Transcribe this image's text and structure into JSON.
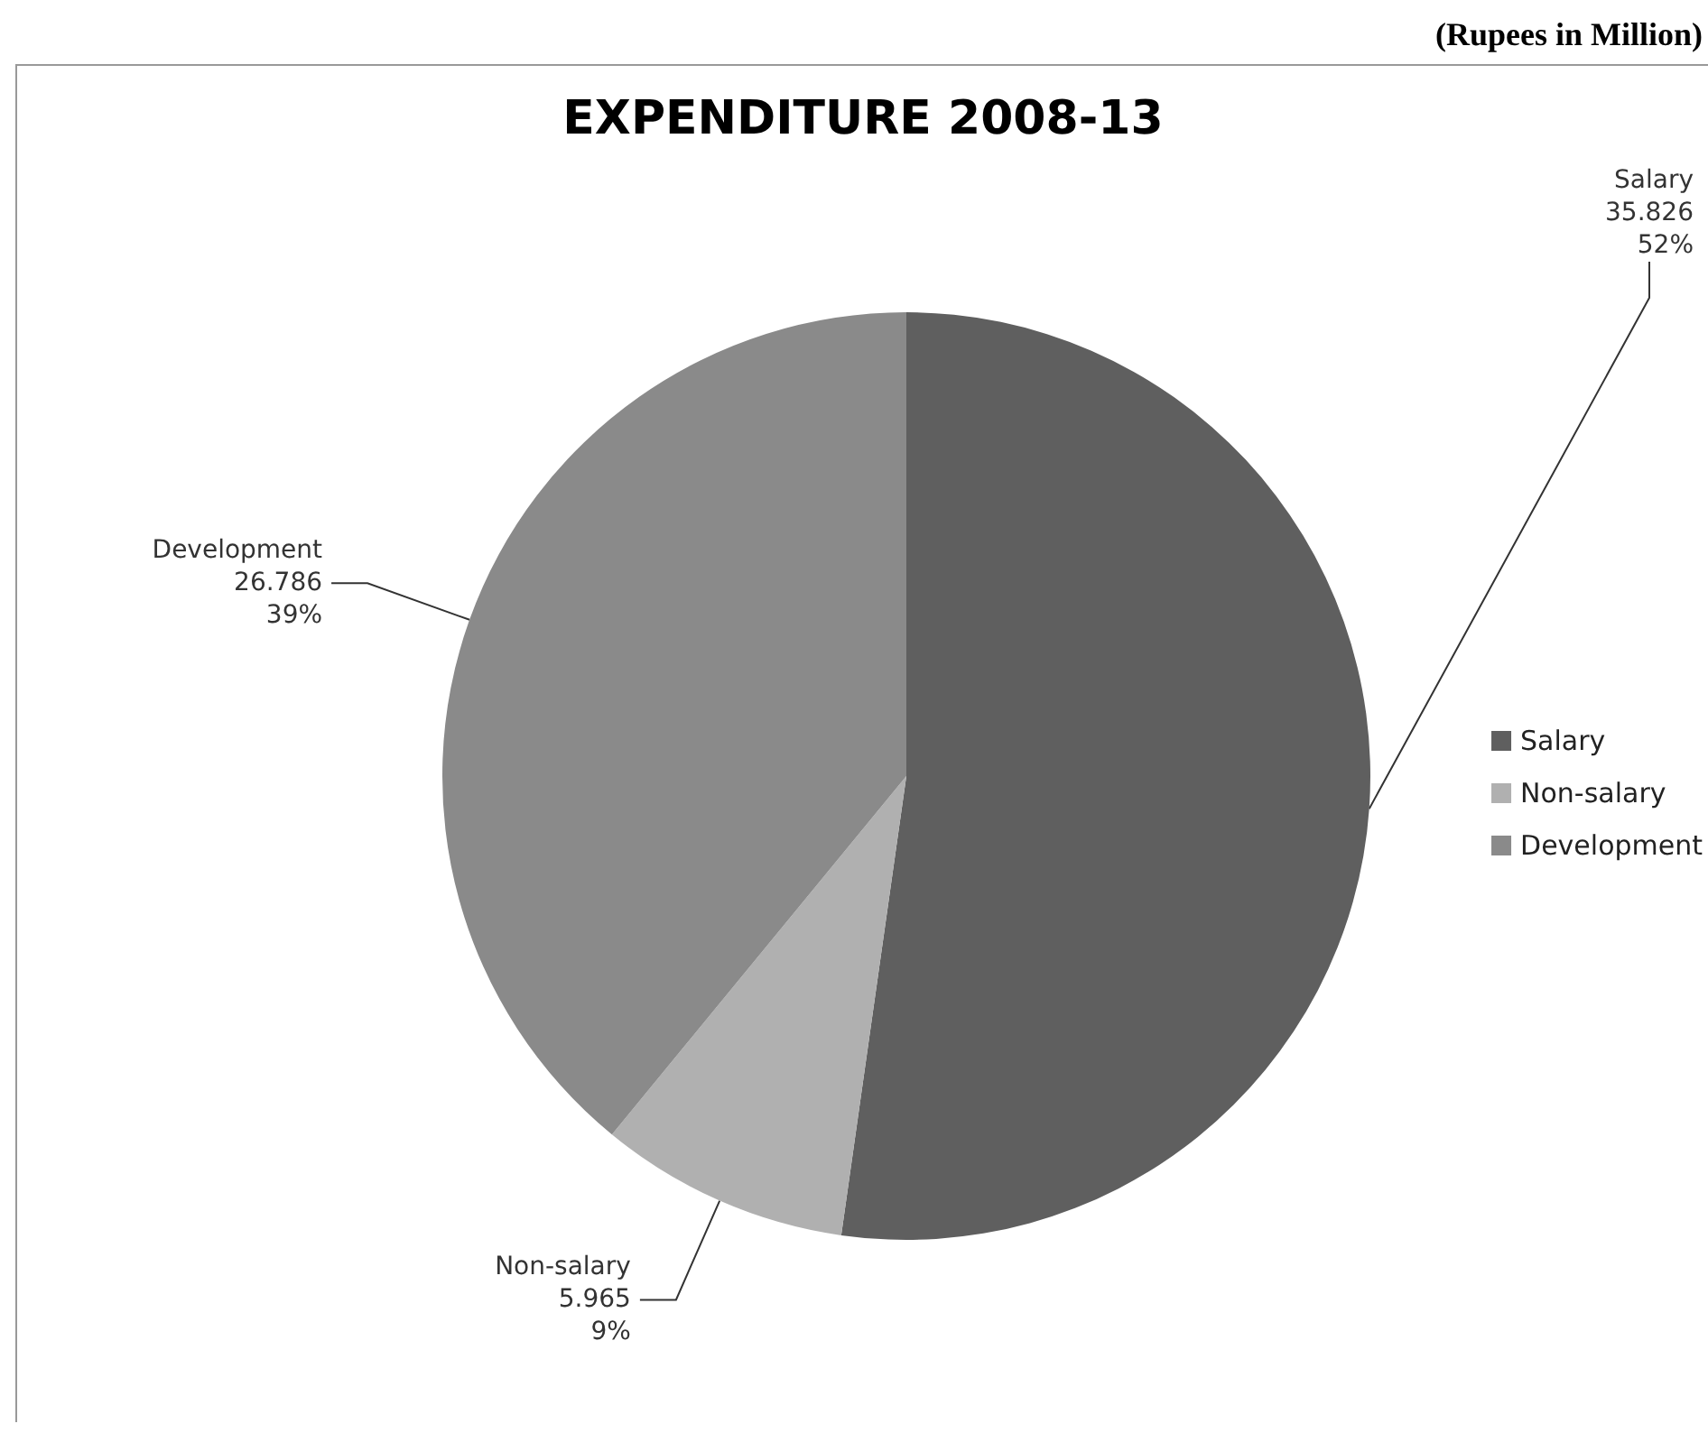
{
  "chart_data": {
    "type": "pie",
    "title": "EXPENDITURE 2008-13",
    "annotations": [
      "(Rupees in Million)"
    ],
    "categories": [
      "Salary",
      "Non-salary",
      "Development"
    ],
    "values": [
      35.826,
      5.965,
      26.786
    ],
    "value_labels": [
      "35.826\n52%",
      "5.965\n9%",
      "26.786\n39%"
    ],
    "colors": [
      "#5f5f5f",
      "#b0b0b0",
      "#8a8a8a"
    ],
    "legend": "right"
  }
}
